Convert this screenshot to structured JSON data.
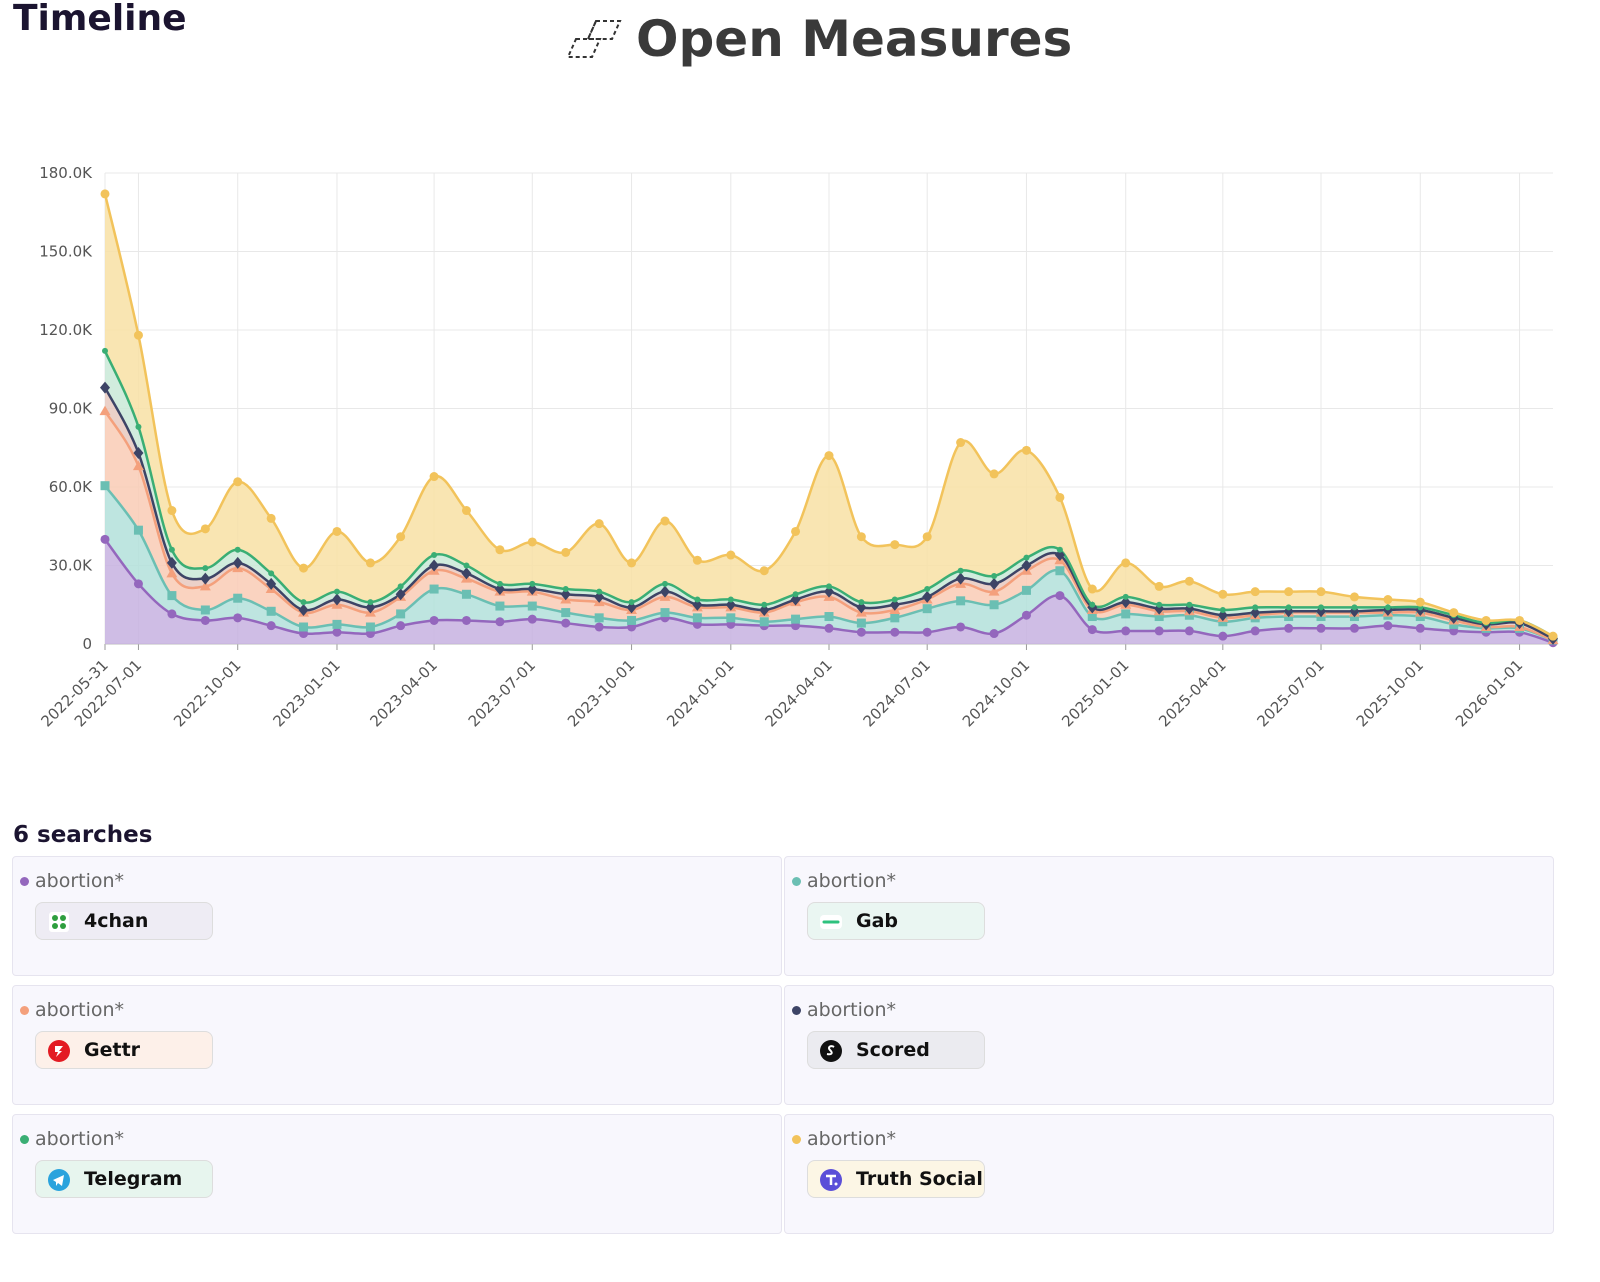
{
  "header": {
    "title": "Timeline",
    "brand": "Open Measures"
  },
  "chart_data": {
    "type": "stacked-area",
    "x": [
      "2022-05-31",
      "2022-07-01",
      "2022-08-01",
      "2022-09-01",
      "2022-10-01",
      "2022-11-01",
      "2022-12-01",
      "2023-01-01",
      "2023-02-01",
      "2023-03-01",
      "2023-04-01",
      "2023-05-01",
      "2023-06-01",
      "2023-07-01",
      "2023-08-01",
      "2023-09-01",
      "2023-10-01",
      "2023-11-01",
      "2023-12-01",
      "2024-01-01",
      "2024-02-01",
      "2024-03-01",
      "2024-04-01",
      "2024-05-01",
      "2024-06-01",
      "2024-07-01",
      "2024-08-01",
      "2024-09-01",
      "2024-10-01",
      "2024-11-01",
      "2024-12-01",
      "2025-01-01",
      "2025-02-01",
      "2025-03-01",
      "2025-04-01",
      "2025-05-01",
      "2025-06-01",
      "2025-07-01",
      "2025-08-01",
      "2025-09-01",
      "2025-10-01",
      "2025-11-01",
      "2025-12-01",
      "2026-01-01",
      "2026-02-01"
    ],
    "xlim": [
      "2022-05-31",
      "2026-02-01"
    ],
    "xticks": [
      "2022-05-31",
      "2022-07-01",
      "2022-10-01",
      "2023-01-01",
      "2023-04-01",
      "2023-07-01",
      "2023-10-01",
      "2024-01-01",
      "2024-04-01",
      "2024-07-01",
      "2024-10-01",
      "2025-01-01",
      "2025-04-01",
      "2025-07-01",
      "2025-10-01",
      "2026-01-01"
    ],
    "ylim": [
      0,
      180000
    ],
    "yticks": [
      0,
      {
        "value": 30000,
        "label": "30.0K"
      },
      {
        "value": 60000,
        "label": "60.0K"
      },
      {
        "value": 90000,
        "label": "90.0K"
      },
      {
        "value": 120000,
        "label": "120.0K"
      },
      {
        "value": 150000,
        "label": "150.0K"
      },
      {
        "value": 180000,
        "label": "180.0K"
      }
    ],
    "grid": true,
    "series": [
      {
        "name": "4chan",
        "color": "#9467bd",
        "marker": "circle",
        "values": [
          40000,
          23000,
          11500,
          9000,
          10000,
          7000,
          4000,
          4500,
          4000,
          7000,
          9000,
          9000,
          8500,
          9500,
          8000,
          6500,
          6500,
          10000,
          7500,
          7500,
          7000,
          7000,
          6000,
          4500,
          4500,
          4500,
          6500,
          4000,
          11000,
          18500,
          5500,
          5000,
          5000,
          5000,
          3000,
          5000,
          6000,
          6000,
          6000,
          7000,
          6000,
          5000,
          4500,
          4500,
          500
        ]
      },
      {
        "name": "Gab",
        "color": "#6bbfb3",
        "marker": "square",
        "values": [
          20500,
          20500,
          7000,
          4000,
          7500,
          5500,
          2500,
          3000,
          2500,
          4500,
          12000,
          10000,
          6000,
          5000,
          4000,
          3500,
          2500,
          2000,
          2500,
          2500,
          1500,
          2500,
          4500,
          3500,
          5500,
          9000,
          10000,
          11000,
          9500,
          9500,
          5000,
          6500,
          5500,
          6000,
          5500,
          5000,
          4500,
          4500,
          4500,
          4000,
          4500,
          2500,
          1500,
          1500,
          1000
        ]
      },
      {
        "name": "Gettr",
        "color": "#f4a07c",
        "marker": "triangle",
        "values": [
          28500,
          24500,
          8500,
          9000,
          11500,
          8500,
          5500,
          7500,
          5500,
          6500,
          7000,
          6000,
          5500,
          5500,
          5000,
          6000,
          4000,
          6000,
          4000,
          4000,
          3500,
          6500,
          7500,
          4000,
          3000,
          3500,
          6500,
          5000,
          7500,
          4000,
          2500,
          3500,
          2000,
          1500,
          1500,
          1000,
          1500,
          1500,
          1500,
          1000,
          1500,
          1500,
          500,
          500,
          0
        ]
      },
      {
        "name": "Scored",
        "color": "#3d4466",
        "marker": "diamond",
        "values": [
          9000,
          5000,
          4000,
          3000,
          2000,
          2000,
          1000,
          2000,
          2000,
          1000,
          2000,
          2000,
          1000,
          1000,
          2000,
          2000,
          1000,
          2000,
          1000,
          1000,
          1000,
          1000,
          2000,
          2000,
          2000,
          1000,
          2000,
          3000,
          2000,
          2000,
          1000,
          1000,
          1000,
          1000,
          1000,
          1000,
          500,
          500,
          500,
          1000,
          1000,
          1000,
          1000,
          1500,
          500
        ]
      },
      {
        "name": "Telegram",
        "color": "#3aae74",
        "marker": "dot",
        "values": [
          14000,
          10000,
          5000,
          4000,
          5000,
          4000,
          3000,
          3000,
          2000,
          3000,
          4000,
          3000,
          2000,
          2000,
          2000,
          2000,
          2000,
          3000,
          2000,
          2000,
          2000,
          2000,
          2000,
          2000,
          2000,
          3000,
          3000,
          3000,
          3000,
          2000,
          1000,
          2000,
          1500,
          1500,
          2000,
          2000,
          1500,
          1500,
          1500,
          1000,
          1000,
          1000,
          500,
          1000,
          1000
        ]
      },
      {
        "name": "Truth Social",
        "color": "#f2c35b",
        "marker": "circle",
        "values": [
          60000,
          35000,
          15000,
          15000,
          26000,
          21000,
          13000,
          23000,
          15000,
          19000,
          30000,
          21000,
          13000,
          16000,
          14000,
          26000,
          15000,
          24000,
          15000,
          17000,
          13000,
          24000,
          50000,
          25000,
          21000,
          20000,
          49000,
          39000,
          41000,
          20000,
          6000,
          13000,
          7000,
          9000,
          6000,
          6000,
          6000,
          6000,
          4000,
          3000,
          2000,
          1000,
          1000,
          0,
          0
        ]
      }
    ]
  },
  "searches": {
    "title": "6 searches",
    "queries": [
      "abortion*",
      "abortion*",
      "abortion*",
      "abortion*",
      "abortion*",
      "abortion*"
    ]
  }
}
